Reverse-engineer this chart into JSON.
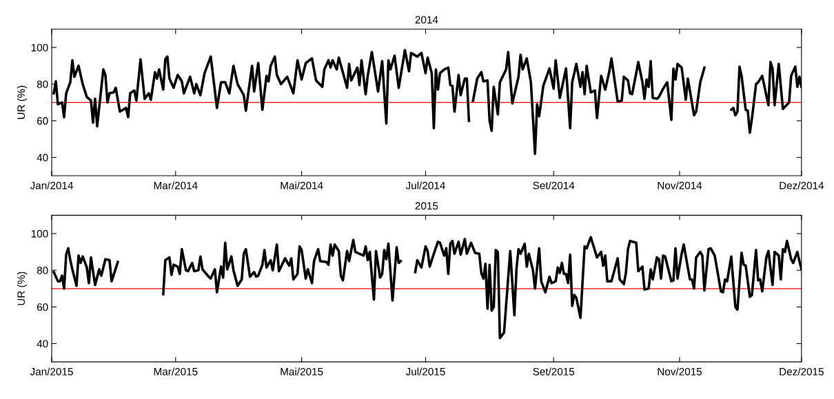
{
  "chart_data": [
    {
      "type": "line",
      "title": "2014",
      "ylabel": "UR (%)",
      "xlim": [
        "2014-01-01",
        "2014-12-30"
      ],
      "ylim": [
        30,
        110
      ],
      "yticks": [
        40,
        60,
        80,
        100
      ],
      "marker": "none",
      "line_style": "solid",
      "xticks": [
        {
          "value": "2014-01-01",
          "label": "Jan/2014"
        },
        {
          "value": "2014-03-02",
          "label": "Mar/2014"
        },
        {
          "value": "2014-05-02",
          "label": "Mai/2014"
        },
        {
          "value": "2014-07-01",
          "label": "Jul/2014"
        },
        {
          "value": "2014-09-01",
          "label": "Set/2014"
        },
        {
          "value": "2014-11-01",
          "label": "Nov/2014"
        },
        {
          "value": "2014-12-30",
          "label": "Dez/2014"
        }
      ],
      "ref_lines": [
        {
          "axis": "y",
          "value": 70,
          "color": "#ff0000",
          "line_style": "solid"
        }
      ],
      "series": [
        {
          "color": "#000000",
          "x": [
            "2014-01-02",
            "2014-01-03",
            "2014-01-04",
            "2014-01-06",
            "2014-01-07",
            "2014-01-08",
            "2014-01-10",
            "2014-01-11",
            "2014-01-12",
            "2014-01-14",
            "2014-01-16",
            "2014-01-18",
            "2014-01-20",
            "2014-01-21",
            "2014-01-22",
            "2014-01-23",
            "2014-01-26",
            "2014-01-27",
            "2014-01-28",
            "2014-01-29",
            "2014-01-31",
            "2014-02-01",
            "2014-02-03",
            "2014-02-06",
            "2014-02-07",
            "2014-02-08",
            "2014-02-10",
            "2014-02-11",
            "2014-02-13",
            "2014-02-15",
            "2014-02-17",
            "2014-02-18",
            "2014-02-20",
            "2014-02-21",
            "2014-02-22",
            "2014-02-24",
            "2014-02-25",
            "2014-02-26",
            "2014-02-27",
            "2014-03-01",
            "2014-03-03",
            "2014-03-05",
            "2014-03-06",
            "2014-03-09",
            "2014-03-11",
            "2014-03-12",
            "2014-03-14",
            "2014-03-16",
            "2014-03-19",
            "2014-03-22",
            "2014-03-24",
            "2014-03-26",
            "2014-03-28",
            "2014-03-30",
            "2014-04-01",
            "2014-04-04",
            "2014-04-05",
            "2014-04-08",
            "2014-04-09",
            "2014-04-11",
            "2014-04-13",
            "2014-04-15",
            "2014-04-16",
            "2014-04-17",
            "2014-04-19",
            "2014-04-20",
            "2014-04-22",
            "2014-04-25",
            "2014-04-28",
            "2014-04-30",
            "2014-05-02",
            "2014-05-04",
            "2014-05-07",
            "2014-05-09",
            "2014-05-12",
            "2014-05-13",
            "2014-05-15",
            "2014-05-16",
            "2014-05-17",
            "2014-05-19",
            "2014-05-20",
            "2014-05-24",
            "2014-05-25",
            "2014-05-26",
            "2014-05-29",
            "2014-05-30",
            "2014-05-31",
            "2014-06-02",
            "2014-06-03",
            "2014-06-05",
            "2014-06-08",
            "2014-06-10",
            "2014-06-12",
            "2014-06-13",
            "2014-06-14",
            "2014-06-16",
            "2014-06-18",
            "2014-06-21",
            "2014-06-23",
            "2014-06-24",
            "2014-06-27",
            "2014-06-29",
            "2014-07-01",
            "2014-07-02",
            "2014-07-04",
            "2014-07-05",
            "2014-07-06",
            "2014-07-07",
            "2014-07-08",
            "2014-07-10",
            "2014-07-12",
            "2014-07-13",
            "2014-07-14",
            "2014-07-15",
            "2014-07-17",
            "2014-07-18",
            "2014-07-20",
            "2014-07-21",
            "2014-07-22",
            "2014-07-23",
            "2014-07-24",
            "2014-07-26",
            "2014-07-28",
            "2014-07-29",
            "2014-07-31",
            "2014-08-01",
            "2014-08-02",
            "2014-08-03",
            "2014-08-05",
            "2014-08-06",
            "2014-08-09",
            "2014-08-10",
            "2014-08-12",
            "2014-08-15",
            "2014-08-16",
            "2014-08-17",
            "2014-08-19",
            "2014-08-21",
            "2014-08-23",
            "2014-08-24",
            "2014-08-25",
            "2014-08-27",
            "2014-08-30",
            "2014-09-01",
            "2014-09-02",
            "2014-09-04",
            "2014-09-07",
            "2014-09-09",
            "2014-09-10",
            "2014-09-12",
            "2014-09-14",
            "2014-09-15",
            "2014-09-16",
            "2014-09-17",
            "2014-09-19",
            "2014-09-21",
            "2014-09-22",
            "2014-09-24",
            "2014-09-26",
            "2014-09-28",
            "2014-09-29",
            "2014-10-02",
            "2014-10-04",
            "2014-10-05",
            "2014-10-07",
            "2014-10-08",
            "2014-10-09",
            "2014-10-11",
            "2014-10-12",
            "2014-10-14",
            "2014-10-15",
            "2014-10-16",
            "2014-10-17",
            "2014-10-18",
            "2014-10-19",
            "2014-10-21",
            "2014-10-22",
            "2014-10-24",
            "2014-10-26",
            "2014-10-28",
            "2014-10-29",
            "2014-10-30",
            "2014-10-31",
            "2014-11-02",
            "2014-11-04",
            "2014-11-05",
            "2014-11-08",
            "2014-11-09",
            "2014-11-11",
            "2014-11-13",
            "2014-11-19",
            "2014-11-26",
            "2014-11-27",
            "2014-11-28",
            "2014-11-29",
            "2014-11-30",
            "2014-12-01",
            "2014-12-03",
            "2014-12-04",
            "2014-12-05",
            "2014-12-06",
            "2014-12-08",
            "2014-12-09",
            "2014-12-11",
            "2014-12-14",
            "2014-12-15",
            "2014-12-16",
            "2014-12-17",
            "2014-12-19",
            "2014-12-21",
            "2014-12-24",
            "2014-12-25",
            "2014-12-27",
            "2014-12-28",
            "2014-12-29",
            "2014-12-30"
          ],
          "values": [
            75,
            81.5,
            69,
            70,
            62,
            75,
            81,
            93,
            84,
            90,
            80,
            73,
            71,
            59,
            72,
            57,
            88,
            85,
            70,
            75,
            75.5,
            78,
            65,
            67,
            62,
            75,
            76.5,
            71,
            93.5,
            72,
            75,
            71.5,
            86.5,
            83,
            88,
            77,
            93.5,
            95,
            83,
            78,
            85,
            81.5,
            75,
            84,
            75,
            80,
            74,
            86,
            95,
            67,
            81,
            81,
            75,
            90,
            80,
            74,
            65.5,
            90,
            76,
            91.5,
            66,
            84.5,
            81.5,
            90,
            95,
            85,
            80,
            84,
            75,
            93,
            82.5,
            91.5,
            94,
            82,
            78.5,
            88,
            93,
            89,
            93,
            88,
            94.5,
            78,
            91,
            82,
            89,
            79.5,
            93,
            74.5,
            84.5,
            97.5,
            76,
            92.5,
            58.5,
            93,
            88,
            95.5,
            78,
            98.5,
            87,
            97,
            95,
            97,
            86,
            94.5,
            86,
            56,
            88,
            77,
            86,
            88,
            89,
            79.5,
            79,
            65,
            85,
            74,
            83,
            83,
            60,
            null,
            71,
            83,
            86.5,
            81.5,
            82,
            60,
            54.5,
            78.5,
            63.5,
            81,
            88,
            97.5,
            69.5,
            84,
            96,
            88,
            94,
            81,
            42,
            69,
            62.5,
            79,
            88.5,
            77.5,
            93,
            72.5,
            88.5,
            56,
            81,
            91,
            78.5,
            86.5,
            74.5,
            90,
            75.5,
            76.5,
            61.5,
            84.5,
            77,
            87,
            94,
            70.5,
            71,
            84,
            82,
            75,
            74.5,
            86,
            92,
            81,
            72,
            82.5,
            78.5,
            92.5,
            72.5,
            72,
            73,
            77.5,
            81,
            60.5,
            88.5,
            82.5,
            91,
            89,
            71.5,
            83,
            63,
            65,
            81,
            89,
            null,
            66,
            67,
            63,
            65,
            89.5,
            84.5,
            66,
            65.5,
            53.5,
            61,
            80,
            81,
            84.5,
            68.5,
            92,
            88.5,
            68.5,
            91,
            66.5,
            70,
            84.5,
            89.5,
            78.5,
            84,
            78.5
          ]
        }
      ]
    },
    {
      "type": "line",
      "title": "2015",
      "ylabel": "UR (%)",
      "xlim": [
        "2015-01-01",
        "2015-12-30"
      ],
      "ylim": [
        30,
        110
      ],
      "yticks": [
        40,
        60,
        80,
        100
      ],
      "marker": "none",
      "line_style": "solid",
      "xticks": [
        {
          "value": "2015-01-01",
          "label": "Jan/2015"
        },
        {
          "value": "2015-03-02",
          "label": "Mar/2015"
        },
        {
          "value": "2015-05-02",
          "label": "Mai/2015"
        },
        {
          "value": "2015-07-01",
          "label": "Jul/2015"
        },
        {
          "value": "2015-09-01",
          "label": "Set/2015"
        },
        {
          "value": "2015-11-01",
          "label": "Nov/2015"
        },
        {
          "value": "2015-12-30",
          "label": "Dez/2015"
        }
      ],
      "ref_lines": [
        {
          "axis": "y",
          "value": 70,
          "color": "#ff0000",
          "line_style": "solid"
        }
      ],
      "series": [
        {
          "color": "#000000",
          "x": [
            "2015-01-02",
            "2015-01-04",
            "2015-01-05",
            "2015-01-06",
            "2015-01-07",
            "2015-01-08",
            "2015-01-09",
            "2015-01-10",
            "2015-01-11",
            "2015-01-13",
            "2015-01-14",
            "2015-01-15",
            "2015-01-16",
            "2015-01-18",
            "2015-01-19",
            "2015-01-20",
            "2015-01-22",
            "2015-01-24",
            "2015-01-25",
            "2015-01-27",
            "2015-01-29",
            "2015-01-30",
            "2015-02-02",
            "2015-02-13",
            "2015-02-24",
            "2015-02-25",
            "2015-02-27",
            "2015-02-28",
            "2015-03-01",
            "2015-03-03",
            "2015-03-04",
            "2015-03-05",
            "2015-03-07",
            "2015-03-08",
            "2015-03-10",
            "2015-03-11",
            "2015-03-13",
            "2015-03-14",
            "2015-03-15",
            "2015-03-18",
            "2015-03-19",
            "2015-03-21",
            "2015-03-22",
            "2015-03-24",
            "2015-03-25",
            "2015-03-26",
            "2015-03-27",
            "2015-03-29",
            "2015-03-30",
            "2015-04-01",
            "2015-04-03",
            "2015-04-04",
            "2015-04-05",
            "2015-04-07",
            "2015-04-09",
            "2015-04-10",
            "2015-04-11",
            "2015-04-13",
            "2015-04-14",
            "2015-04-15",
            "2015-04-17",
            "2015-04-18",
            "2015-04-20",
            "2015-04-21",
            "2015-04-24",
            "2015-04-26",
            "2015-04-27",
            "2015-04-28",
            "2015-04-30",
            "2015-05-01",
            "2015-05-02",
            "2015-05-04",
            "2015-05-05",
            "2015-05-07",
            "2015-05-08",
            "2015-05-10",
            "2015-05-11",
            "2015-05-14",
            "2015-05-15",
            "2015-05-16",
            "2015-05-17",
            "2015-05-18",
            "2015-05-20",
            "2015-05-21",
            "2015-05-22",
            "2015-05-24",
            "2015-05-25",
            "2015-05-27",
            "2015-05-28",
            "2015-06-01",
            "2015-06-02",
            "2015-06-03",
            "2015-06-04",
            "2015-06-06",
            "2015-06-07",
            "2015-06-09",
            "2015-06-10",
            "2015-06-11",
            "2015-06-12",
            "2015-06-13",
            "2015-06-15",
            "2015-06-17",
            "2015-06-18",
            "2015-06-19",
            "2015-06-22",
            "2015-06-26",
            "2015-06-27",
            "2015-06-29",
            "2015-07-01",
            "2015-07-02",
            "2015-07-03",
            "2015-07-05",
            "2015-07-07",
            "2015-07-08",
            "2015-07-10",
            "2015-07-11",
            "2015-07-12",
            "2015-07-13",
            "2015-07-14",
            "2015-07-15",
            "2015-07-17",
            "2015-07-18",
            "2015-07-20",
            "2015-07-21",
            "2015-07-23",
            "2015-07-25",
            "2015-07-27",
            "2015-07-28",
            "2015-07-29",
            "2015-07-30",
            "2015-07-31",
            "2015-08-01",
            "2015-08-02",
            "2015-08-03",
            "2015-08-04",
            "2015-08-05",
            "2015-08-06",
            "2015-08-08",
            "2015-08-11",
            "2015-08-13",
            "2015-08-14",
            "2015-08-15",
            "2015-08-16",
            "2015-08-18",
            "2015-08-19",
            "2015-08-20",
            "2015-08-22",
            "2015-08-23",
            "2015-08-24",
            "2015-08-25",
            "2015-08-26",
            "2015-08-28",
            "2015-08-30",
            "2015-08-31",
            "2015-09-02",
            "2015-09-03",
            "2015-09-04",
            "2015-09-05",
            "2015-09-06",
            "2015-09-07",
            "2015-09-08",
            "2015-09-09",
            "2015-09-10",
            "2015-09-11",
            "2015-09-12",
            "2015-09-14",
            "2015-09-16",
            "2015-09-17",
            "2015-09-19",
            "2015-09-22",
            "2015-09-24",
            "2015-09-25",
            "2015-09-26",
            "2015-09-27",
            "2015-09-29",
            "2015-10-02",
            "2015-10-03",
            "2015-10-05",
            "2015-10-06",
            "2015-10-07",
            "2015-10-08",
            "2015-10-11",
            "2015-10-12",
            "2015-10-14",
            "2015-10-15",
            "2015-10-17",
            "2015-10-18",
            "2015-10-19",
            "2015-10-21",
            "2015-10-22",
            "2015-10-23",
            "2015-10-24",
            "2015-10-25",
            "2015-10-28",
            "2015-10-29",
            "2015-10-30",
            "2015-10-31",
            "2015-11-02",
            "2015-11-03",
            "2015-11-06",
            "2015-11-07",
            "2015-11-08",
            "2015-11-09",
            "2015-11-11",
            "2015-11-12",
            "2015-11-13",
            "2015-11-15",
            "2015-11-16",
            "2015-11-18",
            "2015-11-21",
            "2015-11-22",
            "2015-11-23",
            "2015-11-24",
            "2015-11-26",
            "2015-11-28",
            "2015-11-29",
            "2015-12-01",
            "2015-12-02",
            "2015-12-03",
            "2015-12-05",
            "2015-12-06",
            "2015-12-08",
            "2015-12-09",
            "2015-12-10",
            "2015-12-11",
            "2015-12-13",
            "2015-12-14",
            "2015-12-16",
            "2015-12-17",
            "2015-12-19",
            "2015-12-20",
            "2015-12-21",
            "2015-12-22",
            "2015-12-23",
            "2015-12-25",
            "2015-12-26",
            "2015-12-28",
            "2015-12-29",
            "2015-12-30"
          ],
          "values": [
            79,
            74,
            74,
            77,
            70,
            88.5,
            92,
            85.5,
            80.5,
            71.5,
            88,
            84,
            87.5,
            81.5,
            73,
            87,
            72,
            80.5,
            77,
            86,
            85.5,
            74,
            84.5,
            null,
            67,
            85.5,
            87,
            77.5,
            83,
            82,
            78,
            91.5,
            80,
            79.5,
            84,
            79.5,
            80,
            87.5,
            80.5,
            76.5,
            75.5,
            80.5,
            68,
            82,
            76,
            95,
            80.5,
            87.5,
            80,
            71.5,
            75,
            89,
            91.5,
            76.5,
            79,
            76.5,
            77,
            83,
            91,
            81.5,
            85.5,
            80,
            94,
            79.5,
            86.5,
            82.5,
            86.5,
            75,
            78,
            93,
            91,
            75.5,
            80.5,
            73,
            85,
            91.5,
            85,
            84.5,
            83,
            94,
            88,
            94,
            90.5,
            77,
            74.5,
            90.5,
            85,
            96.5,
            90,
            88,
            93,
            85.5,
            90,
            64,
            90.5,
            76,
            78,
            91,
            86,
            94.5,
            63.5,
            92.5,
            84,
            85,
            null,
            79,
            85.5,
            81.5,
            93,
            90.5,
            82,
            89,
            95.5,
            95,
            88,
            92,
            78,
            94.5,
            96,
            89,
            95.5,
            88.5,
            97,
            89,
            95,
            89.5,
            89,
            78.5,
            75.5,
            83.5,
            59,
            83,
            58,
            60,
            91,
            90,
            43,
            46,
            90.5,
            55.5,
            80.5,
            91.5,
            89,
            94.5,
            82,
            89,
            80,
            70,
            81.5,
            92,
            74,
            68,
            76.5,
            73,
            74,
            81.5,
            78.5,
            84,
            78,
            78,
            73,
            88.5,
            60.5,
            66.5,
            65,
            54,
            93,
            92,
            98,
            87,
            90,
            82.5,
            88,
            74,
            74,
            86.5,
            75,
            72.5,
            78.5,
            91.5,
            96,
            95,
            79.5,
            82,
            69.5,
            70,
            80.5,
            75,
            87,
            86,
            75.5,
            88,
            87.5,
            74,
            74.5,
            92,
            75.5,
            89,
            94,
            75,
            75,
            70,
            87,
            90,
            88,
            69,
            91.5,
            92,
            88,
            68.5,
            68,
            75,
            74,
            87.5,
            60,
            58.5,
            89.5,
            83,
            82.5,
            65.5,
            66.5,
            91,
            74.5,
            75,
            68.5,
            87,
            90.5,
            72,
            90,
            88,
            75,
            91.5,
            90,
            96,
            86,
            84,
            90,
            85,
            80.5
          ]
        }
      ]
    }
  ]
}
